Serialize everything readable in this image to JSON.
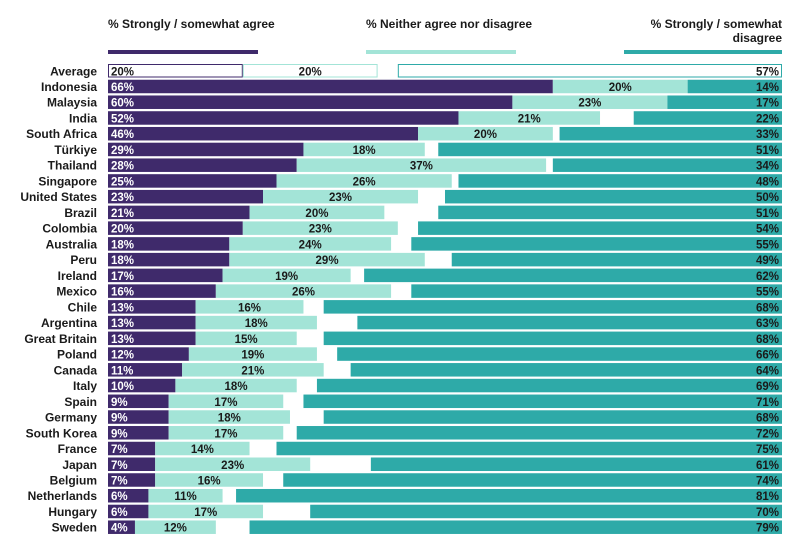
{
  "chart_data": {
    "type": "bar",
    "orientation": "horizontal",
    "stacked": true,
    "legend_position": "top",
    "xlim": [
      0,
      100
    ],
    "series": [
      {
        "name": "% Strongly / somewhat agree",
        "color": "#3f2a6b",
        "values": [
          20,
          66,
          60,
          52,
          46,
          29,
          28,
          25,
          23,
          21,
          20,
          18,
          18,
          17,
          16,
          13,
          13,
          13,
          12,
          11,
          10,
          9,
          9,
          9,
          7,
          7,
          7,
          6,
          6,
          4
        ],
        "labels": [
          "20%",
          "66%",
          "60%",
          "52%",
          "46%",
          "29%",
          "28%",
          "25%",
          "23%",
          "21%",
          "20%",
          "18%",
          "18%",
          "17%",
          "16%",
          "13%",
          "13%",
          "13%",
          "12%",
          "11%",
          "10%",
          "9%",
          "9%",
          "9%",
          "7%",
          "7%",
          "7%",
          "6%",
          "6%",
          "4%"
        ]
      },
      {
        "name": "% Neither agree nor disagree",
        "color": "#a3e4d7",
        "values": [
          20,
          20,
          23,
          21,
          20,
          18,
          37,
          26,
          23,
          20,
          23,
          24,
          29,
          19,
          26,
          16,
          18,
          15,
          19,
          21,
          18,
          17,
          18,
          17,
          14,
          23,
          16,
          11,
          17,
          12
        ],
        "labels": [
          "20%",
          "20%",
          "23%",
          "21%",
          "20%",
          "18%",
          "37%",
          "26%",
          "23%",
          "20%",
          "23%",
          "24%",
          "29%",
          "19%",
          "26%",
          "16%",
          "18%",
          "15%",
          "19%",
          "21%",
          "18%",
          "17%",
          "18%",
          "17%",
          "14%",
          "23%",
          "16%",
          "11%",
          "17%",
          "12%"
        ]
      },
      {
        "name": "% Strongly / somewhat disagree",
        "color": "#2eaaa8",
        "values": [
          57,
          14,
          17,
          22,
          33,
          51,
          34,
          48,
          50,
          51,
          54,
          55,
          49,
          62,
          55,
          68,
          63,
          68,
          66,
          64,
          69,
          71,
          68,
          72,
          75,
          61,
          74,
          81,
          70,
          79
        ],
        "labels": [
          "57%",
          "14%",
          "17%",
          "22%",
          "33%",
          "51%",
          "34%",
          "48%",
          "50%",
          "51%",
          "54%",
          "55%",
          "49%",
          "62%",
          "55%",
          "68%",
          "63%",
          "68%",
          "66%",
          "64%",
          "69%",
          "71%",
          "68%",
          "72%",
          "75%",
          "61%",
          "74%",
          "81%",
          "70%",
          "79%"
        ]
      }
    ],
    "categories": [
      "Average",
      "Indonesia",
      "Malaysia",
      "India",
      "South Africa",
      "Türkiye",
      "Thailand",
      "Singapore",
      "United States",
      "Brazil",
      "Colombia",
      "Australia",
      "Peru",
      "Ireland",
      "Mexico",
      "Chile",
      "Argentina",
      "Great Britain",
      "Poland",
      "Canada",
      "Italy",
      "Spain",
      "Germany",
      "South Korea",
      "France",
      "Japan",
      "Belgium",
      "Netherlands",
      "Hungary",
      "Sweden"
    ],
    "highlight_category": "Average"
  }
}
